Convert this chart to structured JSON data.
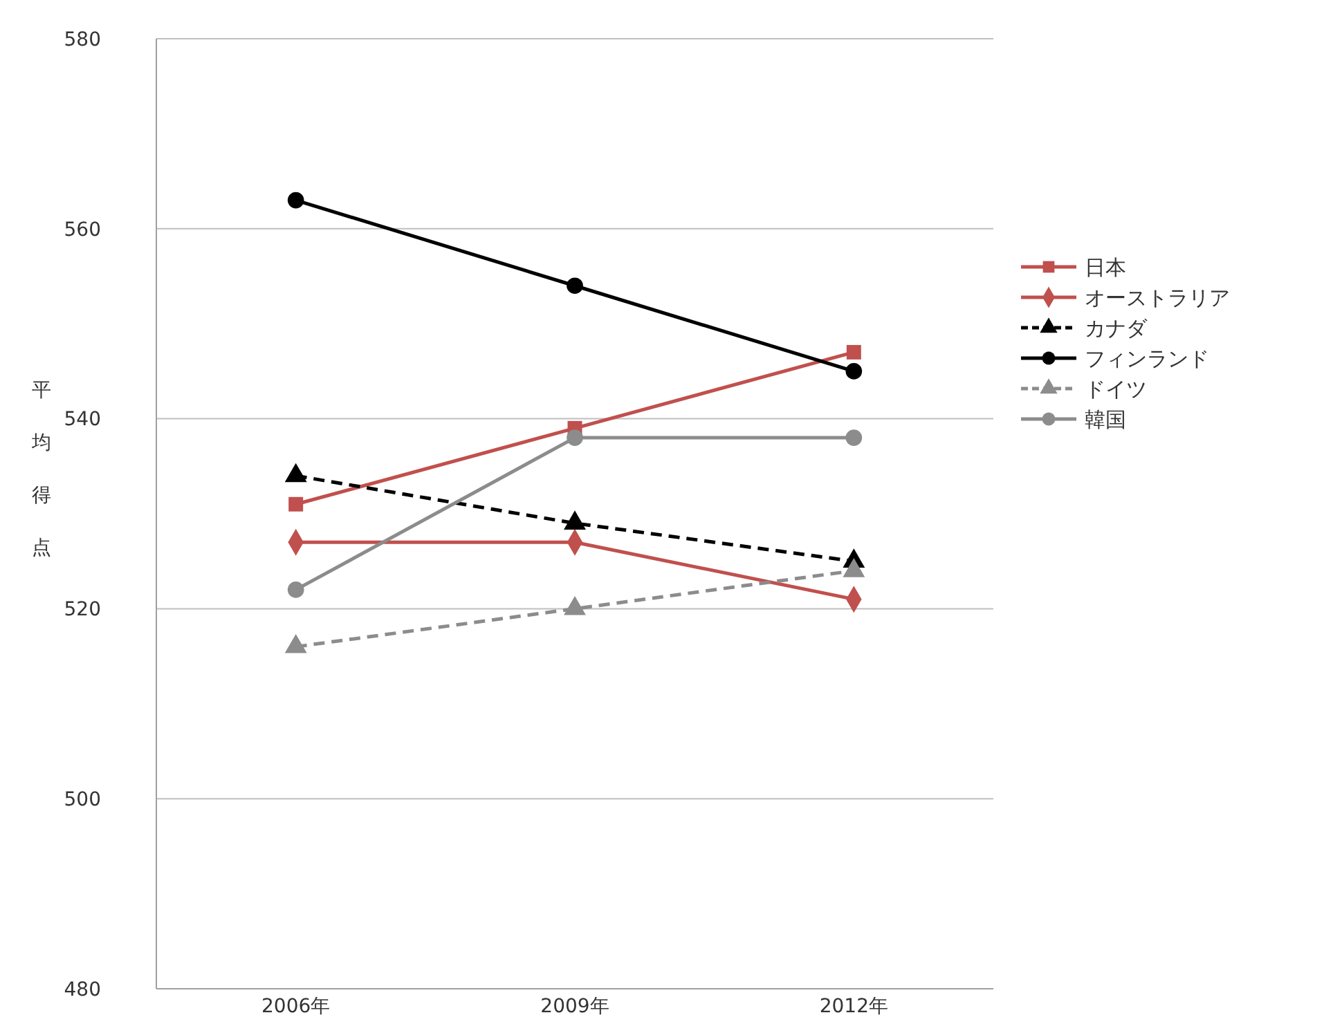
{
  "chart_data": {
    "type": "line",
    "ylabel": "平均得点",
    "categories": [
      "2006年",
      "2009年",
      "2012年"
    ],
    "series": [
      {
        "name": "日本",
        "color": "#c0504d",
        "values": [
          531,
          539,
          547
        ],
        "marker": "square",
        "line_style": "solid"
      },
      {
        "name": "オーストラリア",
        "color": "#c0504d",
        "values": [
          527,
          527,
          521
        ],
        "marker": "diamond",
        "line_style": "solid"
      },
      {
        "name": "カナダ",
        "color": "#000000",
        "values": [
          534,
          529,
          525
        ],
        "marker": "triangle",
        "line_style": "dashed"
      },
      {
        "name": "フィンランド",
        "color": "#000000",
        "values": [
          563,
          554,
          545
        ],
        "marker": "circle",
        "line_style": "solid"
      },
      {
        "name": "ドイツ",
        "color": "#8c8c8c",
        "values": [
          516,
          520,
          524
        ],
        "marker": "triangle",
        "line_style": "dashed"
      },
      {
        "name": "韓国",
        "color": "#8c8c8c",
        "values": [
          522,
          538,
          538
        ],
        "marker": "circle",
        "line_style": "solid"
      }
    ],
    "ylim": [
      480,
      580
    ],
    "yticks": [
      480,
      500,
      520,
      540,
      560,
      580
    ],
    "grid": "y",
    "legend": "right"
  }
}
